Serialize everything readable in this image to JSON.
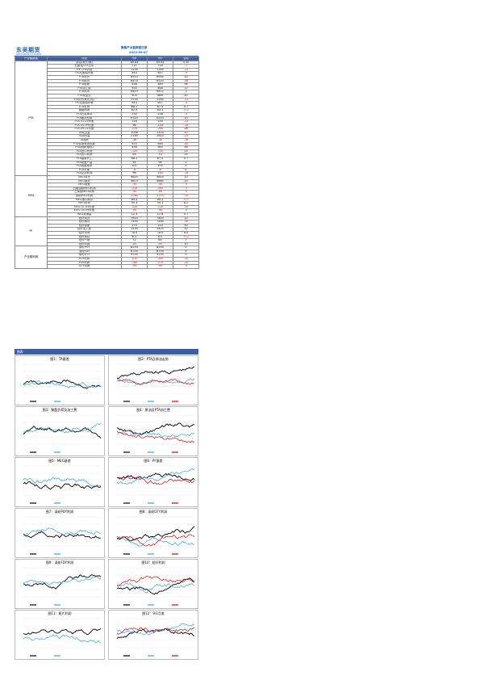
{
  "header": {
    "logo_text": "东吴期货",
    "logo_sub": "SOOCHOW FUTURES",
    "report_title": "聚酯产业链数据日报",
    "report_date": "2022-09-07"
  },
  "table": {
    "columns": [
      "产业链数据",
      "项目",
      "9/6",
      "9/5",
      "变动"
    ],
    "groups": [
      {
        "name": "PTA",
        "rows": [
          [
            "原油(美元/桶)",
            "89.84",
            "89.54",
            "0.30"
          ],
          [
            "石脑油CFR日本",
            "711",
            "718",
            "-7"
          ],
          [
            "PX CFR中国",
            "1154",
            "1165",
            "-11"
          ],
          [
            "PX-石脑油价差",
            "443",
            "447",
            "-4"
          ],
          [
            "PTA现货",
            "6910",
            "6900",
            "10"
          ],
          [
            "PTA期货",
            "6474",
            "6520",
            "-46"
          ],
          [
            "PTA基差",
            "436",
            "380",
            "56"
          ],
          [
            "PTA加工费",
            "500",
            "488",
            "12"
          ],
          [
            "PTA成本",
            "6410",
            "6412",
            "-2"
          ],
          [
            "PTA现金流",
            "500",
            "488",
            "12"
          ],
          [
            "PX现货(美元/吨)",
            "1154",
            "1165",
            "-11"
          ],
          [
            "PX-石脑油价差",
            "443",
            "447",
            "-4"
          ],
          [
            "PTA负荷",
            "68.2",
            "67.5",
            "0.7"
          ],
          [
            "聚酯负荷",
            "82.9",
            "83.1",
            "-0.2"
          ],
          [
            "PTA社会库存",
            "235",
            "238",
            "-3"
          ],
          [
            "PTA期货仓单",
            "6120",
            "6203",
            "-83"
          ],
          [
            "PTA 01-05价差",
            "118",
            "130",
            "-12"
          ],
          [
            "PTA 05-09价差",
            "96",
            "110",
            "-14"
          ],
          [
            "PTA 09-01价差",
            "-214",
            "-240",
            "26"
          ],
          [
            "TA成交量",
            "1058",
            "1120",
            "-62"
          ],
          [
            "TA持仓量",
            "2785",
            "2810",
            "-25"
          ],
          [
            "TA涨跌",
            "-46",
            "-30",
            "-16"
          ],
          [
            "PTA仓单有效预报",
            "520",
            "560",
            "-40"
          ],
          [
            "PTA基差(期现)",
            "436",
            "380",
            "56"
          ],
          [
            "PTA进口利润",
            "-120",
            "-135",
            "15"
          ],
          [
            "PTA出口利润",
            "85",
            "70",
            "15"
          ],
          [
            "PTA装置开工",
            "68.2",
            "67.5",
            "0.7"
          ],
          [
            "PTA周度产量",
            "95",
            "94",
            "1"
          ],
          [
            "PTA周度需求",
            "101",
            "100",
            "1"
          ],
          [
            "PTA平衡",
            "-6",
            "-6",
            "0"
          ],
          [
            "PTA交割利润",
            "96",
            "110",
            "-14"
          ]
        ]
      },
      {
        "name": "MEG",
        "rows": [
          [
            "MEG现货",
            "4620",
            "4610",
            "10"
          ],
          [
            "MEG期货",
            "4675",
            "4660",
            "15"
          ],
          [
            "MEG基差",
            "-55",
            "-50",
            "-5"
          ],
          [
            "石脑油制MEG利润",
            "-210",
            "-205",
            "-5"
          ],
          [
            "乙烯制MEG利润",
            "-95",
            "-90",
            "-5"
          ],
          [
            "煤制MEG利润",
            "-1280",
            "-1270",
            "-10"
          ],
          [
            "MEG港口库存",
            "89.5",
            "90.2",
            "-0.7"
          ],
          [
            "MEG负荷",
            "55.3",
            "55.1",
            "0.2"
          ],
          [
            "MEG 01-05价差",
            "-120",
            "-110",
            "-10"
          ],
          [
            "MEG 05-09价差",
            "-45",
            "-40",
            "-5"
          ],
          [
            "MEG到港量",
            "12.5",
            "11.8",
            "0.7"
          ]
        ]
      },
      {
        "name": "PF",
        "rows": [
          [
            "短纤现货",
            "7620",
            "7600",
            "20"
          ],
          [
            "短纤期货",
            "7450",
            "7480",
            "-30"
          ],
          [
            "短纤基差",
            "170",
            "120",
            "50"
          ],
          [
            "短纤加工费",
            "1430",
            "1420",
            "10"
          ],
          [
            "短纤负荷",
            "78.5",
            "78.0",
            "0.5"
          ],
          [
            "短纤库存",
            "6.3",
            "6.5",
            "-0.2"
          ],
          [
            "短纤产销",
            "72",
            "65",
            "7"
          ],
          [
            "短纤利润",
            "-85",
            "-95",
            "10"
          ]
        ]
      },
      {
        "name": "产业链利润",
        "rows": [
          [
            "涤纶POY",
            "8150",
            "8150",
            "0"
          ],
          [
            "涤纶FDY",
            "8700",
            "8700",
            "0"
          ],
          [
            "涤纶DTY",
            "9750",
            "9750",
            "0"
          ],
          [
            "POY利润",
            "-210",
            "-200",
            "-10"
          ],
          [
            "FDY利润",
            "-180",
            "-170",
            "-10"
          ],
          [
            "DTY利润",
            "-95",
            "-90",
            "-5"
          ]
        ]
      }
    ]
  },
  "charts_section_label": "图表",
  "charts": [
    {
      "title": "图1：TA基差"
    },
    {
      "title": "图2：PTA及原油走势"
    },
    {
      "title": "图3：聚酯负荷及加工费"
    },
    {
      "title": "图4：原油及PTA加工费"
    },
    {
      "title": "图5：MEG基差"
    },
    {
      "title": "图6：PF基差"
    },
    {
      "title": "图7：涤纶POY利润"
    },
    {
      "title": "图8：涤纶DTY利润"
    },
    {
      "title": "图9：涤纶FDY利润"
    },
    {
      "title": "图10：短纤利润"
    },
    {
      "title": "图11：瓶片利润"
    },
    {
      "title": "图12：9/1月差"
    }
  ]
}
